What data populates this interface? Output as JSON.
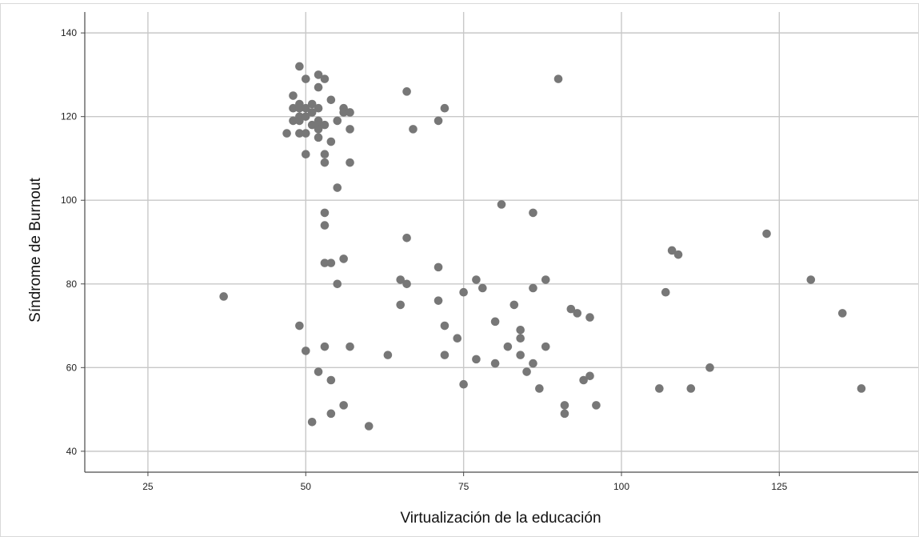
{
  "chart_data": {
    "type": "scatter",
    "title": "",
    "xlabel": "Virtualización de la educación",
    "ylabel": "Síndrome de Burnout",
    "xlim": [
      15,
      147
    ],
    "ylim": [
      35,
      145
    ],
    "x_ticks": [
      25,
      50,
      75,
      100,
      125
    ],
    "y_ticks": [
      40,
      60,
      80,
      100,
      120,
      140
    ],
    "grid": true,
    "legend": "none",
    "marker_color": "#777777",
    "series": [
      {
        "points": [
          [
            37,
            77
          ],
          [
            47,
            116
          ],
          [
            48,
            125
          ],
          [
            48,
            122
          ],
          [
            48,
            119
          ],
          [
            49,
            132
          ],
          [
            49,
            123
          ],
          [
            49,
            122
          ],
          [
            49,
            120
          ],
          [
            49,
            119
          ],
          [
            49,
            116
          ],
          [
            49,
            70
          ],
          [
            50,
            129
          ],
          [
            50,
            122
          ],
          [
            50,
            120
          ],
          [
            50,
            116
          ],
          [
            50,
            111
          ],
          [
            50,
            64
          ],
          [
            51,
            123
          ],
          [
            51,
            121
          ],
          [
            51,
            118
          ],
          [
            51,
            47
          ],
          [
            52,
            130
          ],
          [
            52,
            127
          ],
          [
            52,
            122
          ],
          [
            52,
            119
          ],
          [
            52,
            118
          ],
          [
            52,
            117
          ],
          [
            52,
            115
          ],
          [
            52,
            59
          ],
          [
            53,
            129
          ],
          [
            53,
            118
          ],
          [
            53,
            111
          ],
          [
            53,
            109
          ],
          [
            53,
            97
          ],
          [
            53,
            94
          ],
          [
            53,
            85
          ],
          [
            53,
            65
          ],
          [
            54,
            124
          ],
          [
            54,
            114
          ],
          [
            54,
            85
          ],
          [
            54,
            57
          ],
          [
            54,
            49
          ],
          [
            55,
            119
          ],
          [
            55,
            103
          ],
          [
            55,
            80
          ],
          [
            56,
            122
          ],
          [
            56,
            121
          ],
          [
            56,
            86
          ],
          [
            56,
            51
          ],
          [
            57,
            121
          ],
          [
            57,
            117
          ],
          [
            57,
            109
          ],
          [
            57,
            65
          ],
          [
            60,
            46
          ],
          [
            63,
            63
          ],
          [
            65,
            81
          ],
          [
            65,
            75
          ],
          [
            66,
            126
          ],
          [
            66,
            91
          ],
          [
            66,
            80
          ],
          [
            67,
            117
          ],
          [
            71,
            119
          ],
          [
            71,
            84
          ],
          [
            71,
            76
          ],
          [
            72,
            122
          ],
          [
            72,
            70
          ],
          [
            72,
            63
          ],
          [
            74,
            67
          ],
          [
            75,
            78
          ],
          [
            75,
            56
          ],
          [
            77,
            81
          ],
          [
            77,
            62
          ],
          [
            78,
            79
          ],
          [
            80,
            71
          ],
          [
            80,
            61
          ],
          [
            81,
            99
          ],
          [
            82,
            65
          ],
          [
            83,
            75
          ],
          [
            84,
            69
          ],
          [
            84,
            67
          ],
          [
            84,
            63
          ],
          [
            85,
            59
          ],
          [
            86,
            97
          ],
          [
            86,
            79
          ],
          [
            86,
            61
          ],
          [
            87,
            55
          ],
          [
            88,
            81
          ],
          [
            88,
            65
          ],
          [
            90,
            129
          ],
          [
            91,
            51
          ],
          [
            91,
            49
          ],
          [
            92,
            74
          ],
          [
            93,
            73
          ],
          [
            94,
            57
          ],
          [
            95,
            72
          ],
          [
            95,
            58
          ],
          [
            96,
            51
          ],
          [
            106,
            55
          ],
          [
            107,
            78
          ],
          [
            108,
            88
          ],
          [
            109,
            87
          ],
          [
            111,
            55
          ],
          [
            114,
            60
          ],
          [
            123,
            92
          ],
          [
            130,
            81
          ],
          [
            135,
            73
          ],
          [
            138,
            55
          ]
        ]
      }
    ]
  }
}
